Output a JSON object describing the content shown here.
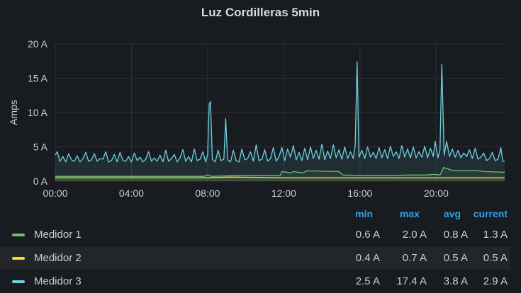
{
  "chart_data": {
    "type": "line",
    "title": "Luz Cordilleras 5min",
    "ylabel": "Amps",
    "xlabel": "",
    "ylim": [
      0,
      20
    ],
    "yticks": [
      "0 A",
      "5 A",
      "10 A",
      "15 A",
      "20 A"
    ],
    "ytick_values": [
      0,
      5,
      10,
      15,
      20
    ],
    "xticks": [
      "00:00",
      "04:00",
      "08:00",
      "12:00",
      "16:00",
      "20:00"
    ],
    "xtick_values": [
      0,
      4,
      8,
      12,
      16,
      20
    ],
    "xlim": [
      0,
      23.6
    ],
    "grid": true,
    "legend_placement": "bottom",
    "legend_columns": [
      "min",
      "max",
      "avg",
      "current"
    ],
    "series": [
      {
        "name": "Medidor 1",
        "color": "#73bf69",
        "stats": {
          "min": "0.6 A",
          "max": "2.0 A",
          "avg": "0.8 A",
          "current": "1.3 A"
        },
        "points": [
          [
            0,
            0.7
          ],
          [
            4,
            0.7
          ],
          [
            7.8,
            0.7
          ],
          [
            8.0,
            0.9
          ],
          [
            8.2,
            0.7
          ],
          [
            9.4,
            0.8
          ],
          [
            11.8,
            0.8
          ],
          [
            11.9,
            1.4
          ],
          [
            12.4,
            1.2
          ],
          [
            12.5,
            1.4
          ],
          [
            13.0,
            1.2
          ],
          [
            13.2,
            1.5
          ],
          [
            14.9,
            1.4
          ],
          [
            15.1,
            0.9
          ],
          [
            16.5,
            0.8
          ],
          [
            17.5,
            0.8
          ],
          [
            18.5,
            0.9
          ],
          [
            19.5,
            0.9
          ],
          [
            19.9,
            1.0
          ],
          [
            20.2,
            0.9
          ],
          [
            20.4,
            2.0
          ],
          [
            20.8,
            1.6
          ],
          [
            21.5,
            1.5
          ],
          [
            22.0,
            1.6
          ],
          [
            22.5,
            1.4
          ],
          [
            23.6,
            1.3
          ]
        ]
      },
      {
        "name": "Medidor 2",
        "color": "#fade2a",
        "stats": {
          "min": "0.4 A",
          "max": "0.7 A",
          "avg": "0.5 A",
          "current": "0.5 A"
        },
        "points": [
          [
            0,
            0.5
          ],
          [
            4,
            0.5
          ],
          [
            8,
            0.5
          ],
          [
            9.2,
            0.6
          ],
          [
            12,
            0.5
          ],
          [
            16,
            0.5
          ],
          [
            20,
            0.5
          ],
          [
            23.6,
            0.5
          ]
        ]
      },
      {
        "name": "Medidor 3",
        "color": "#6ed0e0",
        "stats": {
          "min": "2.5 A",
          "max": "17.4 A",
          "avg": "3.8 A",
          "current": "2.9 A"
        },
        "points": [
          [
            0,
            3.8
          ],
          [
            0.1,
            4.3
          ],
          [
            0.25,
            2.9
          ],
          [
            0.4,
            3.6
          ],
          [
            0.55,
            2.8
          ],
          [
            0.7,
            4.0
          ],
          [
            0.85,
            3.1
          ],
          [
            1.0,
            2.9
          ],
          [
            1.15,
            3.7
          ],
          [
            1.3,
            2.8
          ],
          [
            1.45,
            3.3
          ],
          [
            1.6,
            4.2
          ],
          [
            1.75,
            2.9
          ],
          [
            1.9,
            3.1
          ],
          [
            2.05,
            4.0
          ],
          [
            2.2,
            2.9
          ],
          [
            2.35,
            3.3
          ],
          [
            2.5,
            3.2
          ],
          [
            2.65,
            4.3
          ],
          [
            2.8,
            2.8
          ],
          [
            2.95,
            3.0
          ],
          [
            3.1,
            3.9
          ],
          [
            3.25,
            2.8
          ],
          [
            3.4,
            4.2
          ],
          [
            3.55,
            3.0
          ],
          [
            3.7,
            2.9
          ],
          [
            3.85,
            3.6
          ],
          [
            4.0,
            2.8
          ],
          [
            4.15,
            4.1
          ],
          [
            4.3,
            3.0
          ],
          [
            4.45,
            3.5
          ],
          [
            4.6,
            2.8
          ],
          [
            4.75,
            3.2
          ],
          [
            4.9,
            4.3
          ],
          [
            5.05,
            2.9
          ],
          [
            5.2,
            3.4
          ],
          [
            5.35,
            2.9
          ],
          [
            5.5,
            3.8
          ],
          [
            5.65,
            2.8
          ],
          [
            5.8,
            4.5
          ],
          [
            5.95,
            2.9
          ],
          [
            6.1,
            3.3
          ],
          [
            6.25,
            3.9
          ],
          [
            6.4,
            2.8
          ],
          [
            6.55,
            3.4
          ],
          [
            6.7,
            4.6
          ],
          [
            6.85,
            2.9
          ],
          [
            7.0,
            3.6
          ],
          [
            7.15,
            2.8
          ],
          [
            7.3,
            4.7
          ],
          [
            7.45,
            3.0
          ],
          [
            7.6,
            3.2
          ],
          [
            7.75,
            4.3
          ],
          [
            7.9,
            2.8
          ],
          [
            8.0,
            3.9
          ],
          [
            8.08,
            11.2
          ],
          [
            8.15,
            11.6
          ],
          [
            8.25,
            3.2
          ],
          [
            8.4,
            2.8
          ],
          [
            8.55,
            4.5
          ],
          [
            8.7,
            3.0
          ],
          [
            8.85,
            3.2
          ],
          [
            8.95,
            9.1
          ],
          [
            9.05,
            3.1
          ],
          [
            9.2,
            2.8
          ],
          [
            9.35,
            4.5
          ],
          [
            9.5,
            3.0
          ],
          [
            9.65,
            2.8
          ],
          [
            9.8,
            4.7
          ],
          [
            9.95,
            3.1
          ],
          [
            10.1,
            3.3
          ],
          [
            10.25,
            4.3
          ],
          [
            10.4,
            2.9
          ],
          [
            10.55,
            5.3
          ],
          [
            10.7,
            3.0
          ],
          [
            10.85,
            3.2
          ],
          [
            11.0,
            4.6
          ],
          [
            11.15,
            2.9
          ],
          [
            11.3,
            3.3
          ],
          [
            11.45,
            4.9
          ],
          [
            11.6,
            2.9
          ],
          [
            11.75,
            3.6
          ],
          [
            11.9,
            4.9
          ],
          [
            12.05,
            3.0
          ],
          [
            12.2,
            4.7
          ],
          [
            12.35,
            3.5
          ],
          [
            12.5,
            5.2
          ],
          [
            12.65,
            3.1
          ],
          [
            12.8,
            4.2
          ],
          [
            12.95,
            3.0
          ],
          [
            13.1,
            4.8
          ],
          [
            13.25,
            3.1
          ],
          [
            13.4,
            5.0
          ],
          [
            13.55,
            3.3
          ],
          [
            13.7,
            4.5
          ],
          [
            13.85,
            3.2
          ],
          [
            14.0,
            5.4
          ],
          [
            14.15,
            3.1
          ],
          [
            14.3,
            4.4
          ],
          [
            14.45,
            3.3
          ],
          [
            14.6,
            5.3
          ],
          [
            14.75,
            3.4
          ],
          [
            14.9,
            4.6
          ],
          [
            15.05,
            3.2
          ],
          [
            15.2,
            5.0
          ],
          [
            15.35,
            3.3
          ],
          [
            15.5,
            4.3
          ],
          [
            15.65,
            3.3
          ],
          [
            15.75,
            5.3
          ],
          [
            15.85,
            17.4
          ],
          [
            15.95,
            3.5
          ],
          [
            16.1,
            4.5
          ],
          [
            16.25,
            3.3
          ],
          [
            16.4,
            5.0
          ],
          [
            16.55,
            3.5
          ],
          [
            16.7,
            4.2
          ],
          [
            16.85,
            3.3
          ],
          [
            17.0,
            4.9
          ],
          [
            17.15,
            3.4
          ],
          [
            17.3,
            4.6
          ],
          [
            17.45,
            3.3
          ],
          [
            17.6,
            5.1
          ],
          [
            17.75,
            3.6
          ],
          [
            17.9,
            4.3
          ],
          [
            18.05,
            3.3
          ],
          [
            18.2,
            5.2
          ],
          [
            18.35,
            3.5
          ],
          [
            18.5,
            4.7
          ],
          [
            18.65,
            3.4
          ],
          [
            18.8,
            5.0
          ],
          [
            18.95,
            3.4
          ],
          [
            19.1,
            4.3
          ],
          [
            19.25,
            3.5
          ],
          [
            19.4,
            5.1
          ],
          [
            19.55,
            3.4
          ],
          [
            19.7,
            4.8
          ],
          [
            19.85,
            3.6
          ],
          [
            19.95,
            5.8
          ],
          [
            20.1,
            3.4
          ],
          [
            20.2,
            4.6
          ],
          [
            20.3,
            17.0
          ],
          [
            20.42,
            3.8
          ],
          [
            20.55,
            5.8
          ],
          [
            20.7,
            3.6
          ],
          [
            20.85,
            4.7
          ],
          [
            21.0,
            3.5
          ],
          [
            21.15,
            4.5
          ],
          [
            21.3,
            3.4
          ],
          [
            21.45,
            4.1
          ],
          [
            21.6,
            3.6
          ],
          [
            21.75,
            4.6
          ],
          [
            21.9,
            3.3
          ],
          [
            22.05,
            4.8
          ],
          [
            22.2,
            3.2
          ],
          [
            22.35,
            3.5
          ],
          [
            22.5,
            4.1
          ],
          [
            22.65,
            3.0
          ],
          [
            22.8,
            3.3
          ],
          [
            22.95,
            4.2
          ],
          [
            23.1,
            3.0
          ],
          [
            23.25,
            3.2
          ],
          [
            23.4,
            4.9
          ],
          [
            23.5,
            2.9
          ],
          [
            23.6,
            2.9
          ]
        ]
      }
    ]
  }
}
